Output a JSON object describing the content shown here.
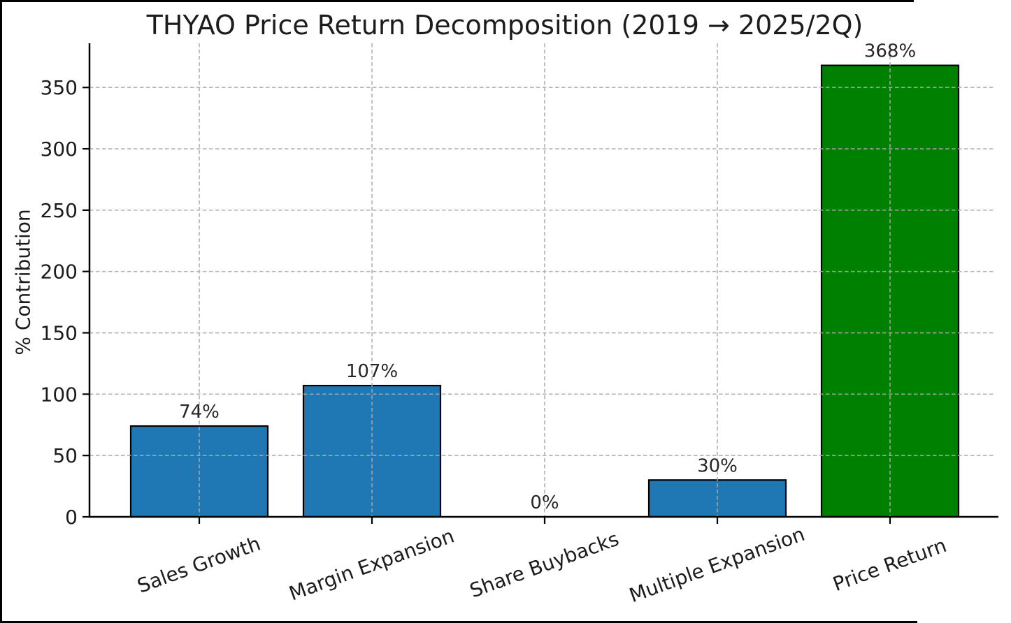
{
  "figure": {
    "background": "#ffffff",
    "frame_border_color": "#000000"
  },
  "chart_data": {
    "type": "bar",
    "title": "THYAO Price Return Decomposition (2019 → 2025/2Q)",
    "ylabel": "% Contribution",
    "xlabel": "",
    "categories": [
      "Sales Growth",
      "Margin Expansion",
      "Share Buybacks",
      "Multiple Expansion",
      "Price Return"
    ],
    "values": [
      74,
      107,
      0,
      30,
      368
    ],
    "bar_labels": [
      "74%",
      "107%",
      "0%",
      "30%",
      "368%"
    ],
    "bar_colors": [
      "#1f77b4",
      "#1f77b4",
      "#1f77b4",
      "#1f77b4",
      "#008000"
    ],
    "bar_edge_color": "#000000",
    "yticks": [
      0,
      50,
      100,
      150,
      200,
      250,
      300,
      350
    ],
    "ylim": [
      0,
      386
    ],
    "grid": true,
    "grid_style": "dashed",
    "gridline_color": "#ababab",
    "axis_color": "#000000",
    "legend": "none",
    "x_tick_rotation_deg": 20
  }
}
